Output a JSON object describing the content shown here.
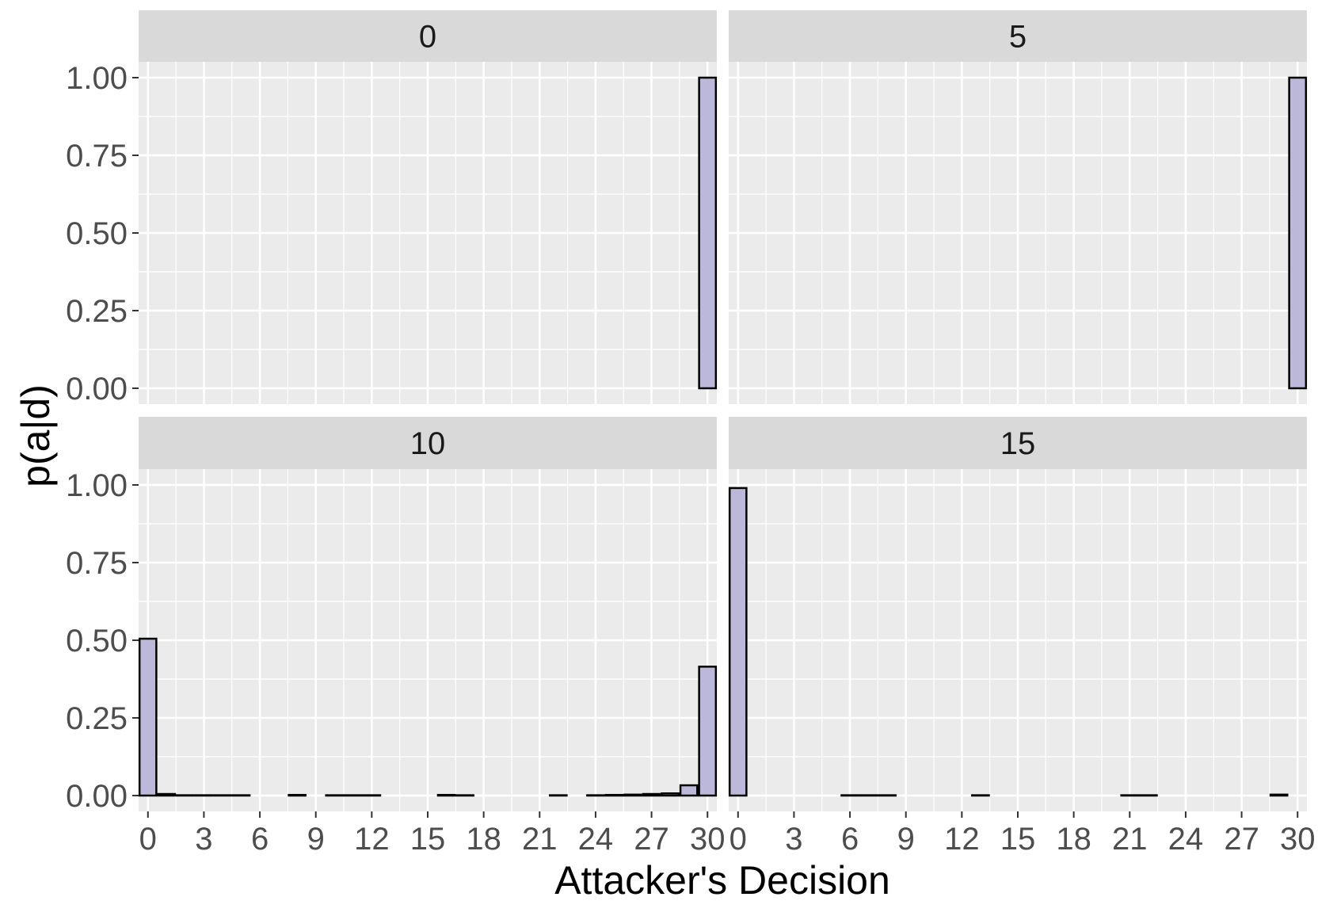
{
  "chart_data": {
    "type": "bar",
    "xlabel": "Attacker's Decision",
    "ylabel": "p(a|d)",
    "xlim": [
      -0.5,
      30.5
    ],
    "ylim": [
      0,
      1.15
    ],
    "x_ticks": [
      0,
      3,
      6,
      9,
      12,
      15,
      18,
      21,
      24,
      27,
      30
    ],
    "y_ticks": [
      0,
      0.25,
      0.5,
      0.75,
      1
    ],
    "y_tick_labels": [
      "0.00",
      "0.25",
      "0.50",
      "0.75",
      "1.00"
    ],
    "grid": true,
    "bar_fill": "#bcb8da",
    "bar_stroke": "#000000",
    "panel_background": "#ebebeb",
    "strip_background": "#d9d9d9",
    "categories": [
      0,
      1,
      2,
      3,
      4,
      5,
      6,
      7,
      8,
      9,
      10,
      11,
      12,
      13,
      14,
      15,
      16,
      17,
      18,
      19,
      20,
      21,
      22,
      23,
      24,
      25,
      26,
      27,
      28,
      29,
      30
    ],
    "panels": [
      {
        "title": "0",
        "values": [
          0,
          0,
          0,
          0,
          0,
          0,
          0,
          0,
          0,
          0,
          0,
          0,
          0,
          0,
          0,
          0,
          0,
          0,
          0,
          0,
          0,
          0,
          0,
          0,
          0,
          0,
          0,
          0,
          0,
          0,
          1.0
        ]
      },
      {
        "title": "5",
        "values": [
          0,
          0,
          0,
          0,
          0,
          0,
          0,
          0,
          0,
          0,
          0,
          0,
          0,
          0,
          0,
          0,
          0,
          0,
          0,
          0,
          0,
          0,
          0,
          0,
          0,
          0,
          0,
          0,
          0,
          0,
          1.0
        ]
      },
      {
        "title": "10",
        "values": [
          0.505,
          0.005,
          0.001,
          0.001,
          0.001,
          0.001,
          0,
          0,
          0.002,
          0,
          0.001,
          0.001,
          0.001,
          0,
          0,
          0,
          0.002,
          0.001,
          0,
          0,
          0,
          0,
          0.001,
          0,
          0.001,
          0.002,
          0.003,
          0.005,
          0.007,
          0.033,
          0.415
        ]
      },
      {
        "title": "15",
        "values": [
          0.99,
          0,
          0,
          0,
          0,
          0,
          0.001,
          0.001,
          0.001,
          0,
          0,
          0,
          0,
          0.001,
          0,
          0,
          0,
          0,
          0,
          0,
          0,
          0.001,
          0.001,
          0,
          0,
          0,
          0,
          0,
          0,
          0.003,
          0
        ]
      }
    ]
  }
}
